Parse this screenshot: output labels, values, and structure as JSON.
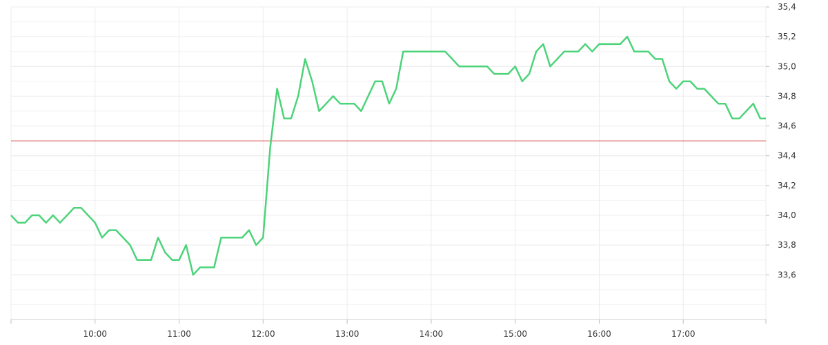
{
  "chart_data": {
    "type": "line",
    "title": "",
    "xlabel": "",
    "ylabel": "",
    "x_range": [
      "09:00",
      "17:59"
    ],
    "ylim": [
      33.3,
      35.4
    ],
    "grid": true,
    "y_axis_side": "right",
    "x_ticks": [
      "10:00",
      "11:00",
      "12:00",
      "13:00",
      "14:00",
      "15:00",
      "16:00",
      "17:00"
    ],
    "y_ticks": [
      "33,6",
      "33,8",
      "34,0",
      "34,2",
      "34,4",
      "34,6",
      "34,8",
      "35,0",
      "35,2",
      "35,4"
    ],
    "y_tick_values": [
      33.6,
      33.8,
      34.0,
      34.2,
      34.4,
      34.6,
      34.8,
      35.0,
      35.2,
      35.4
    ],
    "reference_line": {
      "value": 34.5,
      "color": "#d9534f"
    },
    "series": [
      {
        "color": "#4cd37a",
        "x": [
          "09:00",
          "09:05",
          "09:10",
          "09:15",
          "09:20",
          "09:25",
          "09:30",
          "09:35",
          "09:40",
          "09:45",
          "09:50",
          "09:55",
          "10:00",
          "10:05",
          "10:10",
          "10:15",
          "10:20",
          "10:25",
          "10:30",
          "10:35",
          "10:40",
          "10:45",
          "10:50",
          "10:55",
          "11:00",
          "11:05",
          "11:10",
          "11:15",
          "11:20",
          "11:25",
          "11:30",
          "11:35",
          "11:40",
          "11:45",
          "11:50",
          "11:55",
          "12:00",
          "12:05",
          "12:10",
          "12:15",
          "12:20",
          "12:25",
          "12:30",
          "12:35",
          "12:40",
          "12:45",
          "12:50",
          "12:55",
          "13:00",
          "13:05",
          "13:10",
          "13:15",
          "13:20",
          "13:25",
          "13:30",
          "13:35",
          "13:40",
          "13:45",
          "13:50",
          "13:55",
          "14:00",
          "14:05",
          "14:10",
          "14:15",
          "14:20",
          "14:25",
          "14:30",
          "14:35",
          "14:40",
          "14:45",
          "14:50",
          "14:55",
          "15:00",
          "15:05",
          "15:10",
          "15:15",
          "15:20",
          "15:25",
          "15:30",
          "15:35",
          "15:40",
          "15:45",
          "15:50",
          "15:55",
          "16:00",
          "16:05",
          "16:10",
          "16:15",
          "16:20",
          "16:25",
          "16:30",
          "16:35",
          "16:40",
          "16:45",
          "16:50",
          "16:55",
          "17:00",
          "17:05",
          "17:10",
          "17:15",
          "17:20",
          "17:25",
          "17:30",
          "17:35",
          "17:40",
          "17:45",
          "17:50",
          "17:55",
          "17:59"
        ],
        "values": [
          34.0,
          33.95,
          33.95,
          34.0,
          34.0,
          33.95,
          34.0,
          33.95,
          34.0,
          34.05,
          34.05,
          34.0,
          33.95,
          33.85,
          33.9,
          33.9,
          33.85,
          33.8,
          33.7,
          33.7,
          33.7,
          33.85,
          33.75,
          33.7,
          33.7,
          33.8,
          33.6,
          33.65,
          33.65,
          33.65,
          33.85,
          33.85,
          33.85,
          33.85,
          33.9,
          33.8,
          33.85,
          34.45,
          34.85,
          34.65,
          34.65,
          34.8,
          35.05,
          34.9,
          34.7,
          34.75,
          34.8,
          34.75,
          34.75,
          34.75,
          34.7,
          34.8,
          34.9,
          34.9,
          34.75,
          34.85,
          35.1,
          35.1,
          35.1,
          35.1,
          35.1,
          35.1,
          35.1,
          35.05,
          35.0,
          35.0,
          35.0,
          35.0,
          35.0,
          34.95,
          34.95,
          34.95,
          35.0,
          34.9,
          34.95,
          35.1,
          35.15,
          35.0,
          35.05,
          35.1,
          35.1,
          35.1,
          35.15,
          35.1,
          35.15,
          35.15,
          35.15,
          35.15,
          35.2,
          35.1,
          35.1,
          35.1,
          35.05,
          35.05,
          34.9,
          34.85,
          34.9,
          34.9,
          34.85,
          34.85,
          34.8,
          34.75,
          34.75,
          34.65,
          34.65,
          34.7,
          34.75,
          34.65,
          34.65
        ]
      }
    ]
  }
}
